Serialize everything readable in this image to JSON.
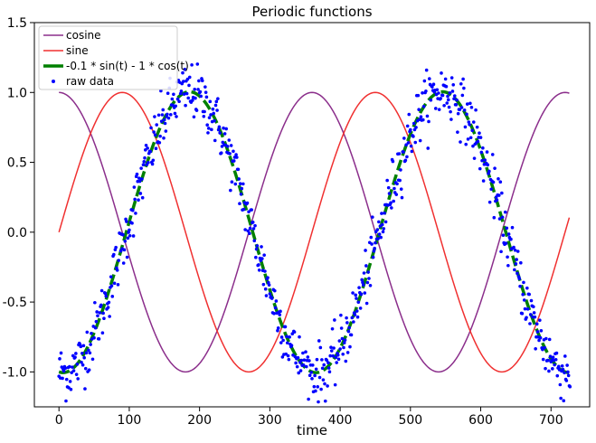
{
  "chart_data": {
    "type": "line",
    "title": "Periodic functions",
    "xlabel": "time",
    "ylabel": "",
    "xlim": [
      -35,
      755
    ],
    "ylim": [
      -1.25,
      1.5
    ],
    "xticks": [
      0,
      100,
      200,
      300,
      400,
      500,
      600,
      700
    ],
    "yticks": [
      -1.0,
      -0.5,
      0.0,
      0.5,
      1.0,
      1.5
    ],
    "ytick_labels": [
      "-1.0",
      "-0.5",
      "0.0",
      "0.5",
      "1.0",
      "1.5"
    ],
    "grid": false,
    "legend_position": "top-left",
    "x_domain": [
      0,
      727
    ],
    "period": 360,
    "series": [
      {
        "name": "cosine",
        "kind": "line",
        "function": "cos",
        "color": "#8B2E8B",
        "width": 1.5
      },
      {
        "name": "sine",
        "kind": "line",
        "function": "sin",
        "color": "#F03030",
        "width": 1.5
      },
      {
        "name": "-0.1 * sin(t) - 1 * cos(t)",
        "kind": "dashed-line",
        "function": "-0.1*sin-cos",
        "color": "#008000",
        "width": 3.5
      },
      {
        "name": "raw data",
        "kind": "scatter",
        "function": "-0.1*sin-cos + noise",
        "color": "#0000FF",
        "noise_amplitude": 0.1
      }
    ]
  }
}
